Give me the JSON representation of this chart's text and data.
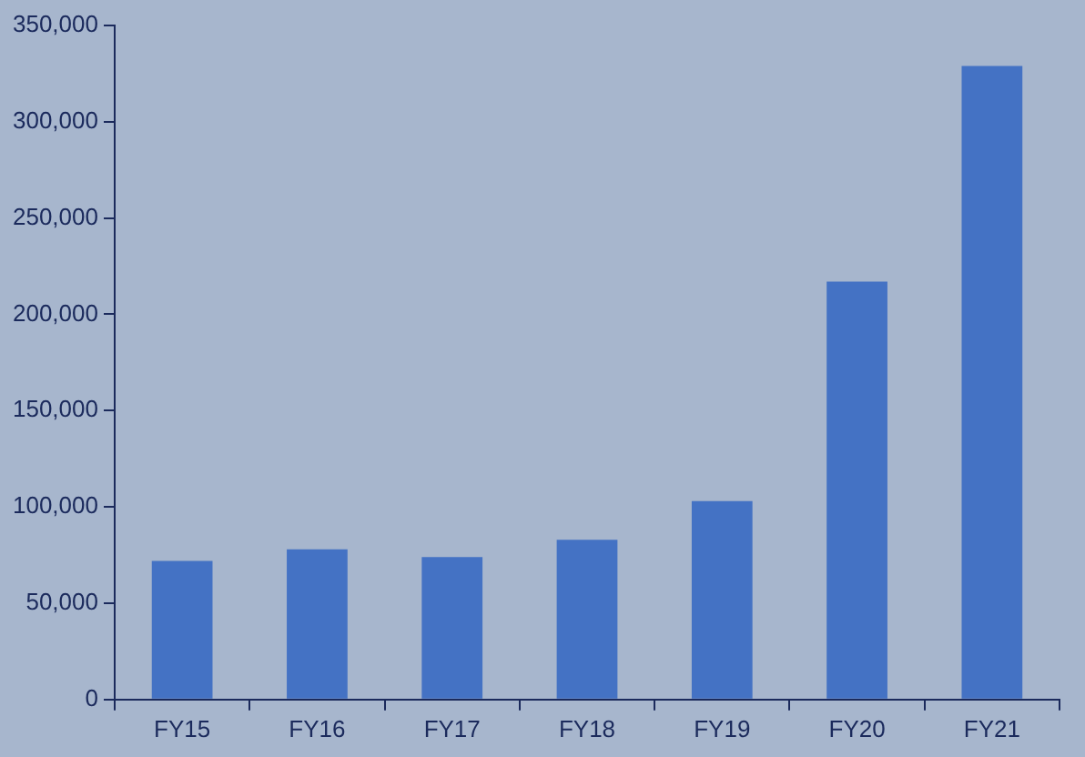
{
  "chart_data": {
    "type": "bar",
    "categories": [
      "FY15",
      "FY16",
      "FY17",
      "FY18",
      "FY19",
      "FY20",
      "FY21"
    ],
    "values": [
      72000,
      78000,
      74000,
      83000,
      103000,
      217000,
      329000
    ],
    "color": "#4472c4",
    "ylim": [
      0,
      350000
    ],
    "yticks": [
      0,
      {
        "value": 50000,
        "label": "50,000"
      },
      {
        "value": 100000,
        "label": "100,000"
      },
      {
        "value": 150000,
        "label": "150,000"
      },
      {
        "value": 200000,
        "label": "200,000"
      },
      {
        "value": 250000,
        "label": "250,000"
      },
      {
        "value": 300000,
        "label": "300,000"
      },
      {
        "value": 350000,
        "label": "350,000"
      }
    ],
    "grid": false,
    "legend": false
  }
}
